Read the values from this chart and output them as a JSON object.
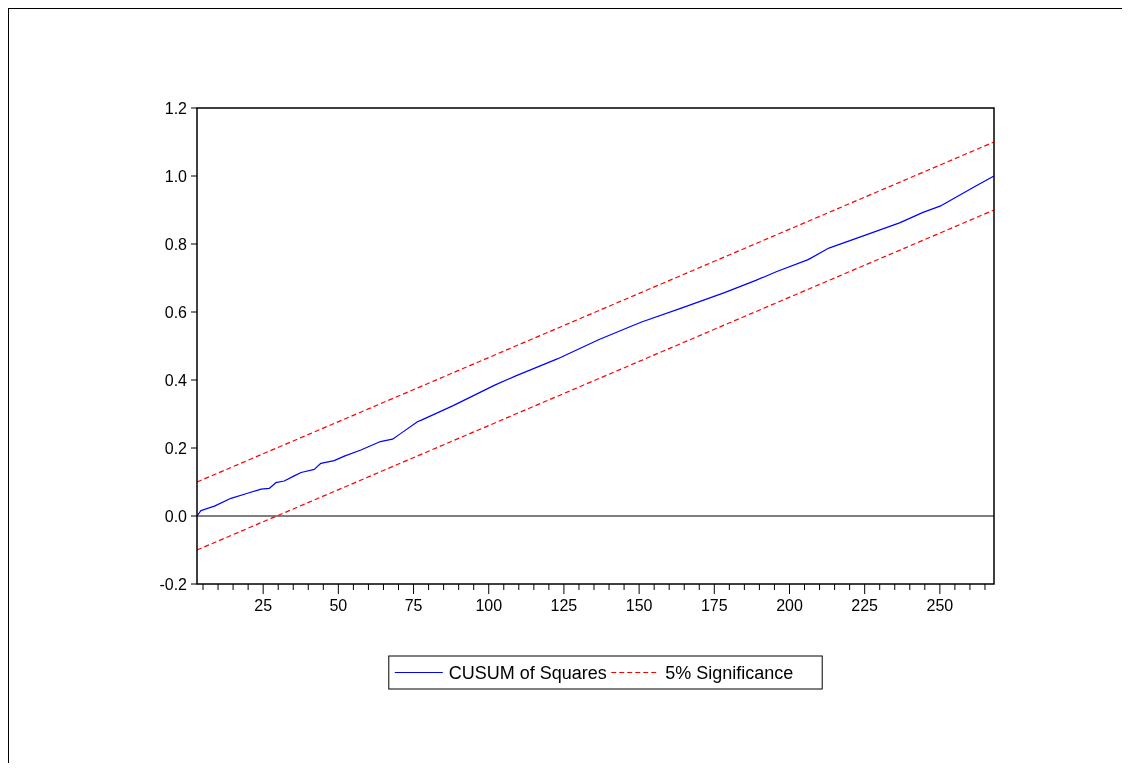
{
  "chart_data": {
    "type": "line",
    "xlim": [
      3,
      268
    ],
    "ylim": [
      -0.2,
      1.2
    ],
    "xticks": [
      {
        "value": 5,
        "label": null
      },
      {
        "value": 10,
        "label": null
      },
      {
        "value": 15,
        "label": null
      },
      {
        "value": 20,
        "label": null
      },
      25,
      {
        "value": 30,
        "label": null
      },
      {
        "value": 35,
        "label": null
      },
      {
        "value": 40,
        "label": null
      },
      {
        "value": 45,
        "label": null
      },
      50,
      {
        "value": 55,
        "label": null
      },
      {
        "value": 60,
        "label": null
      },
      {
        "value": 65,
        "label": null
      },
      {
        "value": 70,
        "label": null
      },
      75,
      {
        "value": 80,
        "label": null
      },
      {
        "value": 85,
        "label": null
      },
      {
        "value": 90,
        "label": null
      },
      {
        "value": 95,
        "label": null
      },
      100,
      {
        "value": 105,
        "label": null
      },
      {
        "value": 110,
        "label": null
      },
      {
        "value": 115,
        "label": null
      },
      {
        "value": 120,
        "label": null
      },
      125,
      {
        "value": 130,
        "label": null
      },
      {
        "value": 135,
        "label": null
      },
      {
        "value": 140,
        "label": null
      },
      {
        "value": 145,
        "label": null
      },
      150,
      {
        "value": 155,
        "label": null
      },
      {
        "value": 160,
        "label": null
      },
      {
        "value": 165,
        "label": null
      },
      {
        "value": 170,
        "label": null
      },
      175,
      {
        "value": 180,
        "label": null
      },
      {
        "value": 185,
        "label": null
      },
      {
        "value": 190,
        "label": null
      },
      {
        "value": 195,
        "label": null
      },
      200,
      {
        "value": 205,
        "label": null
      },
      {
        "value": 210,
        "label": null
      },
      {
        "value": 215,
        "label": null
      },
      {
        "value": 220,
        "label": null
      },
      225,
      {
        "value": 230,
        "label": null
      },
      {
        "value": 235,
        "label": null
      },
      {
        "value": 240,
        "label": null
      },
      {
        "value": 245,
        "label": null
      },
      250,
      {
        "value": 255,
        "label": null
      },
      {
        "value": 260,
        "label": null
      },
      {
        "value": 265,
        "label": null
      }
    ],
    "yticks": [
      -0.2,
      {
        "value": 0,
        "label": "0.0"
      },
      0.2,
      0.4,
      0.6,
      0.8,
      {
        "value": 1,
        "label": "1.0"
      },
      1.2
    ],
    "grid": false,
    "legend": "bottom",
    "ref_lines": [
      {
        "axis": "y",
        "value": 0,
        "color": "#000000"
      }
    ],
    "series": [
      {
        "name": "CUSUM of Squares",
        "color": "#0000ff",
        "line_style": "solid",
        "x": [
          3,
          4.3,
          8.8,
          14.3,
          19.8,
          24.3,
          27,
          29.2,
          32,
          35.3,
          37.6,
          42,
          44.2,
          48.6,
          52,
          57.5,
          64,
          68,
          70.8,
          76.3,
          77.6,
          88,
          102,
          109,
          122.8,
          136.7,
          150.6,
          164.5,
          178.4,
          188.8,
          195.8,
          206.2,
          213.1,
          223.6,
          236.6,
          244.4,
          250.5,
          261.8,
          268
        ],
        "values": [
          0,
          0.016,
          0.029,
          0.052,
          0.067,
          0.079,
          0.081,
          0.098,
          0.103,
          0.118,
          0.128,
          0.137,
          0.155,
          0.163,
          0.176,
          0.194,
          0.219,
          0.226,
          0.243,
          0.277,
          0.282,
          0.324,
          0.385,
          0.412,
          0.462,
          0.519,
          0.57,
          0.613,
          0.657,
          0.693,
          0.719,
          0.754,
          0.788,
          0.821,
          0.862,
          0.893,
          0.913,
          0.97,
          1.0
        ]
      },
      {
        "name": "5% Significance",
        "color": "#ff0000",
        "line_style": "dashed",
        "x": [
          3,
          268
        ],
        "values": [
          0.1,
          1.1
        ]
      },
      {
        "color": "#ff0000",
        "line_style": "dashed",
        "x": [
          3,
          268
        ],
        "values": [
          -0.1,
          0.9
        ]
      }
    ]
  }
}
